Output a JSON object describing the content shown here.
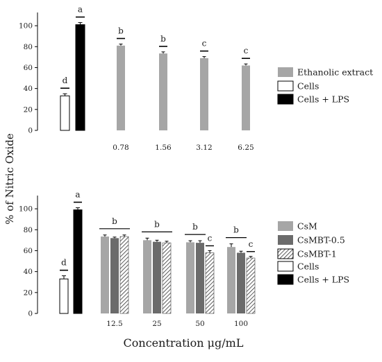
{
  "shared_axes": {
    "ylabel": "% of Nitric Oxide",
    "xlabel": "Concentration μg/mL"
  },
  "chart_data": [
    {
      "type": "bar",
      "title": "",
      "ylim": [
        0,
        110
      ],
      "yticks": [
        0,
        20,
        40,
        60,
        80,
        100
      ],
      "grid": false,
      "legend_position": "right",
      "controls": [
        {
          "name": "Cells",
          "value": 33,
          "error": 2,
          "letter": "d",
          "fill": "#ffffff",
          "pattern": "none"
        },
        {
          "name": "Cells + LPS",
          "value": 101,
          "error": 2,
          "letter": "a",
          "fill": "#000000",
          "pattern": "none"
        }
      ],
      "categories": [
        "0.78",
        "1.56",
        "3.12",
        "6.25"
      ],
      "series": [
        {
          "name": "Ethanolic extract",
          "fill": "#a6a6a6",
          "pattern": "none",
          "values": [
            81,
            73.5,
            69,
            62
          ],
          "errors": [
            1.5,
            1.5,
            1.5,
            1.5
          ]
        }
      ],
      "group_letters": [
        "b",
        "b",
        "c",
        "c"
      ],
      "legend": [
        "Ethanolic extract",
        "Cells",
        "Cells + LPS"
      ]
    },
    {
      "type": "bar",
      "title": "",
      "ylim": [
        0,
        110
      ],
      "yticks": [
        0,
        20,
        40,
        60,
        80,
        100
      ],
      "grid": false,
      "legend_position": "right",
      "controls": [
        {
          "name": "Cells",
          "value": 33,
          "error": 3,
          "letter": "d",
          "fill": "#ffffff",
          "pattern": "none"
        },
        {
          "name": "Cells + LPS",
          "value": 99,
          "error": 2,
          "letter": "a",
          "fill": "#000000",
          "pattern": "none"
        }
      ],
      "categories": [
        "12.5",
        "25",
        "50",
        "100"
      ],
      "series": [
        {
          "name": "CsM",
          "fill": "#a6a6a6",
          "pattern": "none",
          "values": [
            73.5,
            70,
            68,
            63.5
          ],
          "errors": [
            1.5,
            2,
            1.5,
            3
          ]
        },
        {
          "name": "CsMBT-0.5",
          "fill": "#6b6b6b",
          "pattern": "none",
          "values": [
            72,
            68.5,
            67.5,
            58
          ],
          "errors": [
            1,
            1.5,
            2,
            1.5
          ]
        },
        {
          "name": "CsMBT-1",
          "fill": "#ffffff",
          "pattern": "hatch",
          "values": [
            73.5,
            67.5,
            58,
            53
          ],
          "errors": [
            1.5,
            1.5,
            2,
            1.5
          ]
        }
      ],
      "group_letters": [
        {
          "letter": "b",
          "span": "all"
        },
        {
          "letter": "b",
          "span": "all"
        },
        {
          "letter": "b",
          "span": "first-two"
        },
        {
          "letter": "b",
          "span": "first-two"
        }
      ],
      "single_letters": [
        {
          "category": "50",
          "series": "CsMBT-1",
          "letter": "c"
        },
        {
          "category": "100",
          "series": "CsMBT-1",
          "letter": "c"
        }
      ],
      "legend": [
        "CsM",
        "CsMBT-0.5",
        "CsMBT-1",
        "Cells",
        "Cells + LPS"
      ]
    }
  ]
}
